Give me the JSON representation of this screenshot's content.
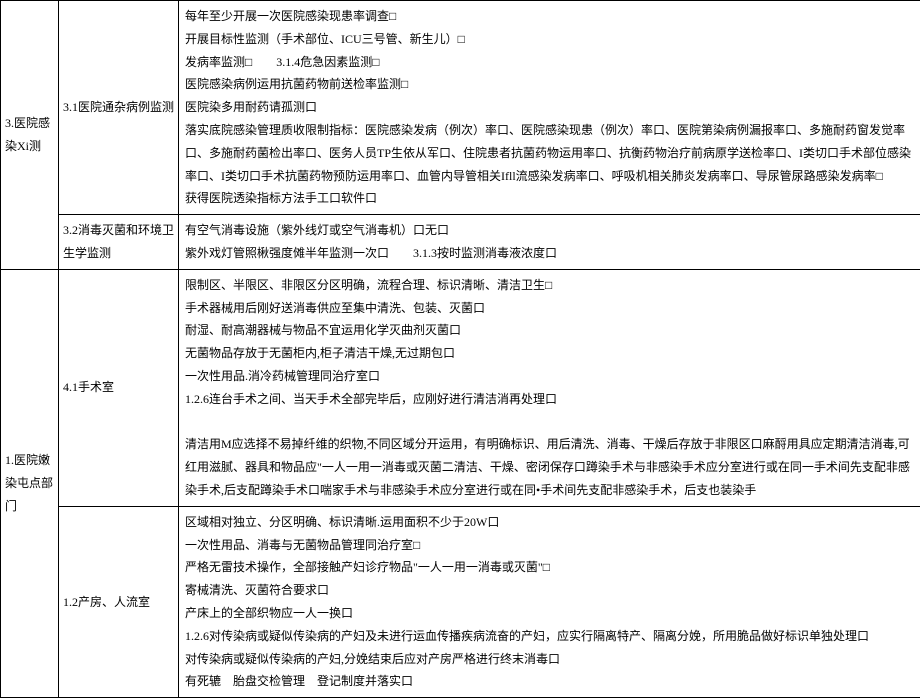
{
  "rows": [
    {
      "c1": "3.医院感染Xi测",
      "c1rowspan": 2,
      "c2": "3.1医院通杂病例监测",
      "lines": [
        "每年至少开展一次医院感染现患率调查□",
        "开展目标性监测（手术部位、ICU三号管、新生儿）□",
        "发病率监测□　　3.1.4危急因素监测□",
        "医院感染病例运用抗菌药物前送检率监测□",
        "医院染多用耐药请孤测口",
        "落实底院感染管理质收限制指标：医院感染发病（例次）率口、医院感染现患（例次）率口、医院第染病例漏报率口、多施耐药窗发觉率口、多施耐药菌检出率口、医务人员TP生依从军口、住院患者抗菌药物运用率口、抗衡药物治疗前病原学送检率口、I类切口手术部位感染率口、I类切口手术抗菌药物预防运用率口、血管内导管相关Ifll流感染发病率口、呼吸机相关肺炎发病率口、导尿管尿路感染发病率□",
        "获得医院透染指标方法手工口软件口"
      ]
    },
    {
      "c2": "3.2消毒灭菌和环境卫生学监测",
      "lines": [
        "有空气消毒设施（紫外线灯或空气消毒机）口无口",
        "紫外戏灯管照楸强度傩半年监测一次口　　3.1.3按时监测消毒液浓度口"
      ]
    },
    {
      "c1": "1.医院嫩染屯点部门",
      "c1rowspan": 2,
      "c2": "4.1手术室",
      "lines": [
        "限制区、半限区、非限区分区明确，流程合理、标识清晰、清洁卫生□",
        "手术器械用后刚好送消毒供应至集中清洗、包装、灭菌口",
        "耐湿、耐高潮器械与物品不宜运用化学灭曲剂灭菌口",
        "无菌物品存放于无菌柜内,柜子清洁干燥,无过期包口",
        "一次性用品.消冷药械管理同治疗室口",
        "1.2.6连台手术之间、当天手术全部完毕后，应刚好进行清洁消再处理口",
        "",
        "清洁用M应选择不易掉纤维的织物,不同区域分开运用，有明确标识、用后清洗、消毒、干燥后存放于非限区口麻酹用具应定期清洁消毒,可红用滋腻、器具和物品应\"一人一用一消毒或灭菌二清洁、干燥、密闭保存口蹲染手术与非感染手术应分室进行或在同一手术间先支配非感染手术,后支配蹲染手术口喘家手术与非感染手术应分室进行或在同•手术间先支配非感染手术，后支也装染手"
      ]
    },
    {
      "c2": "1.2产房、人流室",
      "lines": [
        "区域相对独立、分区明确、标识清晰.运用面积不少于20W口",
        "一次性用品、消毒与无菌物品管理同治疗室□",
        "严格无雷技术操作，全部接触产妇诊疗物品\"一人一用一消毒或灭菌\"□",
        "寄械清洗、灭菌符合要求口",
        "产床上的全部织物应一人一换口",
        "1.2.6对传染病或疑似传染病的产妇及未进行运血传播疾病流奋的产妇，应实行隔离特产、隔离分娩，所用脆品做好标识单独处理口",
        "对传染病或疑似传染病的产妇,分娩结束后应对产房严格进行终末消毒口",
        "有死辘　胎盘交检管理　登记制度并落实口"
      ]
    }
  ]
}
